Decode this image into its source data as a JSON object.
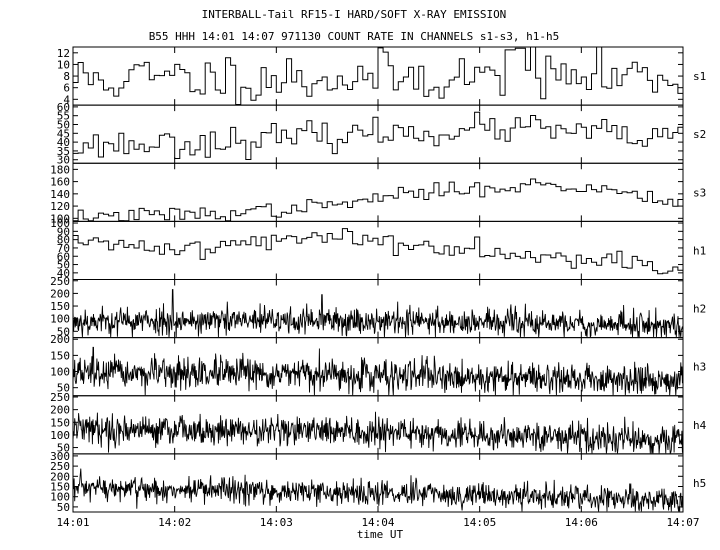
{
  "title_line1": "INTERBALL-Tail RF15-I HARD/SOFT X-RAY EMISSION",
  "title_line2": "B55 HHH 14:01 14:07 971130  COUNT RATE IN CHANNELS s1-s3, h1-h5",
  "chart_data": {
    "type": "line",
    "xlabel": "time UT",
    "x_ticks": [
      "14:01",
      "14:02",
      "14:03",
      "14:04",
      "14:05",
      "14:06",
      "14:07"
    ],
    "xlim": [
      "14:01",
      "14:07"
    ],
    "panels": [
      {
        "name": "s1",
        "ylim": [
          3,
          13
        ],
        "yticks": [
          4,
          6,
          8,
          10,
          12
        ],
        "step": true,
        "trend": [
          {
            "x": 0,
            "y": 7.5
          },
          {
            "x": 6,
            "y": 8
          }
        ],
        "noise": 2.2,
        "n": 120,
        "seed": 11,
        "spikes": [
          {
            "x": 4.3,
            "y": 12.5
          },
          {
            "x": 4.4,
            "y": 12.8
          }
        ]
      },
      {
        "name": "s2",
        "ylim": [
          28,
          61
        ],
        "yticks": [
          30,
          35,
          40,
          45,
          50,
          55,
          60
        ],
        "step": true,
        "trend": [
          {
            "x": 0,
            "y": 38
          },
          {
            "x": 1.4,
            "y": 40
          },
          {
            "x": 3,
            "y": 45
          },
          {
            "x": 4.5,
            "y": 48
          },
          {
            "x": 6,
            "y": 41
          }
        ],
        "noise": 4.0,
        "n": 120,
        "seed": 23,
        "spikes": []
      },
      {
        "name": "s3",
        "ylim": [
          95,
          190
        ],
        "yticks": [
          100,
          120,
          140,
          160,
          180
        ],
        "step": true,
        "trend": [
          {
            "x": 0,
            "y": 102
          },
          {
            "x": 1.5,
            "y": 108
          },
          {
            "x": 2.5,
            "y": 120
          },
          {
            "x": 3.3,
            "y": 140
          },
          {
            "x": 4.5,
            "y": 155
          },
          {
            "x": 5.4,
            "y": 145
          },
          {
            "x": 6,
            "y": 128
          }
        ],
        "noise": 6.0,
        "n": 120,
        "seed": 37,
        "spikes": []
      },
      {
        "name": "h1",
        "ylim": [
          32,
          102
        ],
        "yticks": [
          40,
          50,
          60,
          70,
          80,
          90,
          100
        ],
        "step": true,
        "trend": [
          {
            "x": 0,
            "y": 75
          },
          {
            "x": 1.3,
            "y": 70
          },
          {
            "x": 2.5,
            "y": 85
          },
          {
            "x": 3.5,
            "y": 72
          },
          {
            "x": 4.5,
            "y": 65
          },
          {
            "x": 6,
            "y": 47
          }
        ],
        "noise": 6.0,
        "n": 120,
        "seed": 41,
        "spikes": []
      },
      {
        "name": "h2",
        "ylim": [
          25,
          255
        ],
        "yticks": [
          50,
          100,
          150,
          200,
          250
        ],
        "step": false,
        "trend": [
          {
            "x": 0,
            "y": 90
          },
          {
            "x": 3,
            "y": 92
          },
          {
            "x": 6,
            "y": 72
          }
        ],
        "noise": 28,
        "n": 1100,
        "seed": 53,
        "spikes": [
          {
            "x": 0.98,
            "y": 215
          },
          {
            "x": 2.45,
            "y": 195
          }
        ]
      },
      {
        "name": "h3",
        "ylim": [
          25,
          205
        ],
        "yticks": [
          50,
          100,
          150,
          200
        ],
        "step": false,
        "trend": [
          {
            "x": 0,
            "y": 95
          },
          {
            "x": 3,
            "y": 88
          },
          {
            "x": 6,
            "y": 72
          }
        ],
        "noise": 24,
        "n": 1100,
        "seed": 67,
        "spikes": [
          {
            "x": 0.2,
            "y": 175
          }
        ]
      },
      {
        "name": "h4",
        "ylim": [
          25,
          255
        ],
        "yticks": [
          50,
          100,
          150,
          200,
          250
        ],
        "step": false,
        "trend": [
          {
            "x": 0,
            "y": 125
          },
          {
            "x": 3,
            "y": 112
          },
          {
            "x": 6,
            "y": 75
          }
        ],
        "noise": 30,
        "n": 1100,
        "seed": 79,
        "spikes": []
      },
      {
        "name": "h5",
        "ylim": [
          25,
          310
        ],
        "yticks": [
          50,
          100,
          150,
          200,
          250,
          300
        ],
        "step": false,
        "trend": [
          {
            "x": 0,
            "y": 140
          },
          {
            "x": 3,
            "y": 120
          },
          {
            "x": 6,
            "y": 82
          }
        ],
        "noise": 32,
        "n": 1100,
        "seed": 97,
        "spikes": []
      }
    ]
  }
}
